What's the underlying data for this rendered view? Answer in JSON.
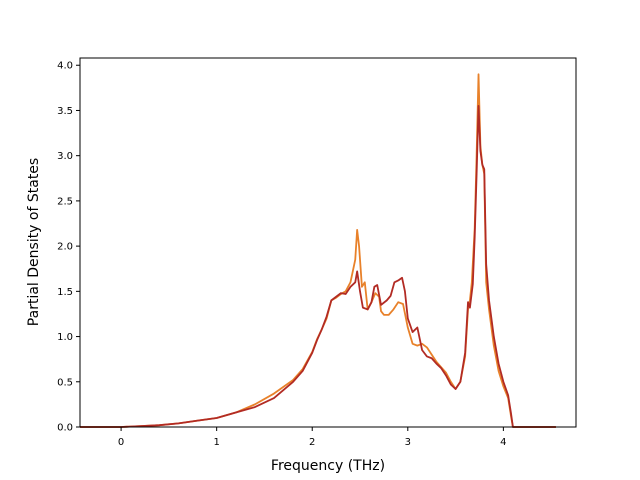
{
  "chart_data": {
    "type": "line",
    "xlabel": "Frequency (THz)",
    "ylabel": "Partial Density of States",
    "xlim": [
      -0.43,
      4.76
    ],
    "ylim": [
      0.0,
      4.08
    ],
    "xticks": [
      0,
      1,
      2,
      3,
      4
    ],
    "yticks": [
      0.0,
      0.5,
      1.0,
      1.5,
      2.0,
      2.5,
      3.0,
      3.5,
      4.0
    ],
    "x_tick_labels": [
      "0",
      "1",
      "2",
      "3",
      "4"
    ],
    "y_tick_labels": [
      "0.0",
      "0.5",
      "1.0",
      "1.5",
      "2.0",
      "2.5",
      "3.0",
      "3.5",
      "4.0"
    ],
    "grid": false,
    "legend": false,
    "series": [
      {
        "color": "#e8812a",
        "points": [
          [
            -0.43,
            0.0
          ],
          [
            0.0,
            0.0
          ],
          [
            0.2,
            0.01
          ],
          [
            0.4,
            0.02
          ],
          [
            0.6,
            0.04
          ],
          [
            0.8,
            0.07
          ],
          [
            1.0,
            0.1
          ],
          [
            1.2,
            0.16
          ],
          [
            1.4,
            0.25
          ],
          [
            1.6,
            0.37
          ],
          [
            1.8,
            0.52
          ],
          [
            1.9,
            0.64
          ],
          [
            2.0,
            0.83
          ],
          [
            2.05,
            0.97
          ],
          [
            2.1,
            1.08
          ],
          [
            2.15,
            1.2
          ],
          [
            2.2,
            1.4
          ],
          [
            2.25,
            1.43
          ],
          [
            2.3,
            1.47
          ],
          [
            2.35,
            1.5
          ],
          [
            2.4,
            1.6
          ],
          [
            2.45,
            1.85
          ],
          [
            2.47,
            2.18
          ],
          [
            2.49,
            2.0
          ],
          [
            2.52,
            1.55
          ],
          [
            2.55,
            1.6
          ],
          [
            2.58,
            1.3
          ],
          [
            2.62,
            1.38
          ],
          [
            2.66,
            1.48
          ],
          [
            2.7,
            1.44
          ],
          [
            2.72,
            1.28
          ],
          [
            2.75,
            1.24
          ],
          [
            2.8,
            1.24
          ],
          [
            2.85,
            1.3
          ],
          [
            2.9,
            1.38
          ],
          [
            2.95,
            1.36
          ],
          [
            3.0,
            1.1
          ],
          [
            3.05,
            0.92
          ],
          [
            3.1,
            0.9
          ],
          [
            3.15,
            0.92
          ],
          [
            3.2,
            0.88
          ],
          [
            3.25,
            0.8
          ],
          [
            3.3,
            0.72
          ],
          [
            3.35,
            0.66
          ],
          [
            3.4,
            0.6
          ],
          [
            3.45,
            0.5
          ],
          [
            3.5,
            0.42
          ],
          [
            3.55,
            0.5
          ],
          [
            3.6,
            0.78
          ],
          [
            3.63,
            1.3
          ],
          [
            3.65,
            1.4
          ],
          [
            3.67,
            1.6
          ],
          [
            3.7,
            2.2
          ],
          [
            3.72,
            3.0
          ],
          [
            3.74,
            3.9
          ],
          [
            3.76,
            3.1
          ],
          [
            3.78,
            2.9
          ],
          [
            3.8,
            2.8
          ],
          [
            3.82,
            1.6
          ],
          [
            3.85,
            1.3
          ],
          [
            3.9,
            0.9
          ],
          [
            3.95,
            0.62
          ],
          [
            4.0,
            0.45
          ],
          [
            4.05,
            0.32
          ],
          [
            4.08,
            0.12
          ],
          [
            4.1,
            0.0
          ],
          [
            4.55,
            0.0
          ]
        ]
      },
      {
        "color": "#b22b24",
        "points": [
          [
            -0.43,
            0.0
          ],
          [
            0.0,
            0.0
          ],
          [
            0.2,
            0.01
          ],
          [
            0.4,
            0.02
          ],
          [
            0.6,
            0.04
          ],
          [
            0.8,
            0.07
          ],
          [
            1.0,
            0.1
          ],
          [
            1.2,
            0.16
          ],
          [
            1.4,
            0.22
          ],
          [
            1.6,
            0.32
          ],
          [
            1.8,
            0.5
          ],
          [
            1.9,
            0.62
          ],
          [
            2.0,
            0.82
          ],
          [
            2.05,
            0.96
          ],
          [
            2.1,
            1.08
          ],
          [
            2.15,
            1.22
          ],
          [
            2.2,
            1.4
          ],
          [
            2.25,
            1.44
          ],
          [
            2.3,
            1.48
          ],
          [
            2.35,
            1.47
          ],
          [
            2.4,
            1.55
          ],
          [
            2.45,
            1.6
          ],
          [
            2.47,
            1.72
          ],
          [
            2.5,
            1.5
          ],
          [
            2.53,
            1.32
          ],
          [
            2.58,
            1.3
          ],
          [
            2.62,
            1.38
          ],
          [
            2.65,
            1.55
          ],
          [
            2.68,
            1.57
          ],
          [
            2.72,
            1.35
          ],
          [
            2.78,
            1.4
          ],
          [
            2.82,
            1.45
          ],
          [
            2.86,
            1.6
          ],
          [
            2.9,
            1.62
          ],
          [
            2.94,
            1.65
          ],
          [
            2.97,
            1.5
          ],
          [
            3.0,
            1.2
          ],
          [
            3.05,
            1.05
          ],
          [
            3.1,
            1.1
          ],
          [
            3.15,
            0.85
          ],
          [
            3.2,
            0.78
          ],
          [
            3.25,
            0.76
          ],
          [
            3.3,
            0.7
          ],
          [
            3.35,
            0.65
          ],
          [
            3.4,
            0.57
          ],
          [
            3.45,
            0.47
          ],
          [
            3.5,
            0.42
          ],
          [
            3.55,
            0.5
          ],
          [
            3.6,
            0.82
          ],
          [
            3.63,
            1.38
          ],
          [
            3.65,
            1.32
          ],
          [
            3.68,
            1.58
          ],
          [
            3.7,
            2.1
          ],
          [
            3.72,
            2.8
          ],
          [
            3.74,
            3.55
          ],
          [
            3.76,
            3.05
          ],
          [
            3.78,
            2.9
          ],
          [
            3.8,
            2.85
          ],
          [
            3.82,
            1.8
          ],
          [
            3.85,
            1.4
          ],
          [
            3.9,
            1.0
          ],
          [
            3.95,
            0.7
          ],
          [
            4.0,
            0.5
          ],
          [
            4.05,
            0.35
          ],
          [
            4.08,
            0.15
          ],
          [
            4.1,
            0.0
          ],
          [
            4.55,
            0.0
          ]
        ]
      }
    ]
  }
}
